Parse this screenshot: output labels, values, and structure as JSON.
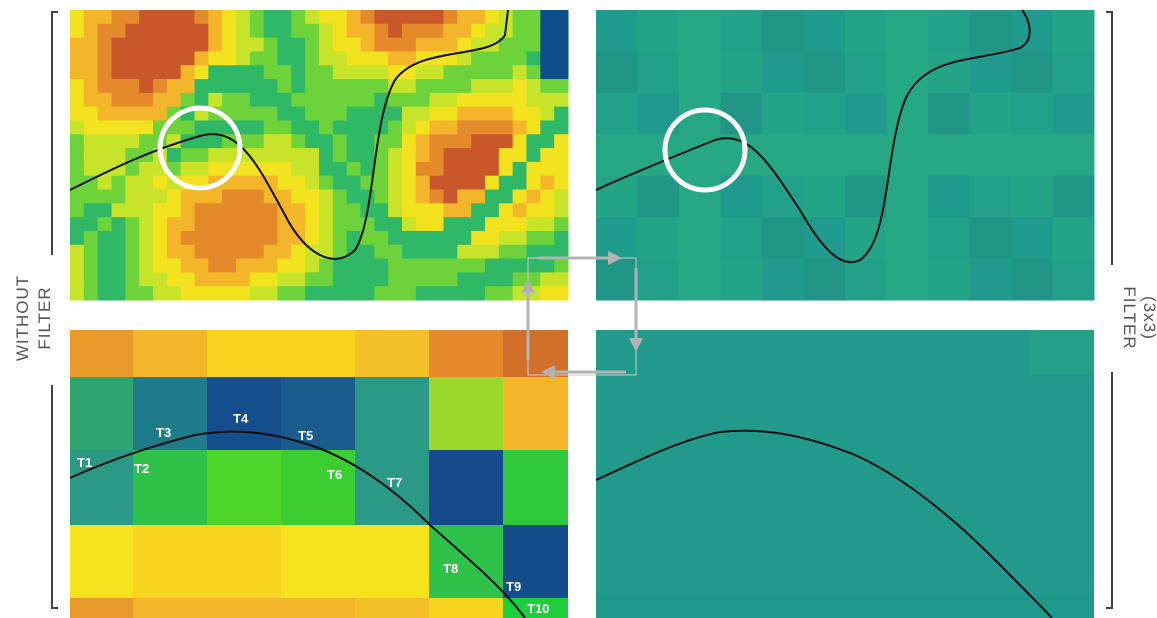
{
  "labels": {
    "left_line1": "WITHOUT",
    "left_line2": "FILTER",
    "right_line1": "FILTER",
    "right_line2": "(3x3)"
  },
  "points": [
    "T1",
    "T2",
    "T3",
    "T4",
    "T5",
    "T6",
    "T7",
    "T8",
    "T9",
    "T10"
  ],
  "colors": {
    "filtered_teal": "#219a8c",
    "curve": "#111111",
    "circle": "#ffffff",
    "arrow": "#b3b3b3",
    "bracket": "#444444"
  }
}
